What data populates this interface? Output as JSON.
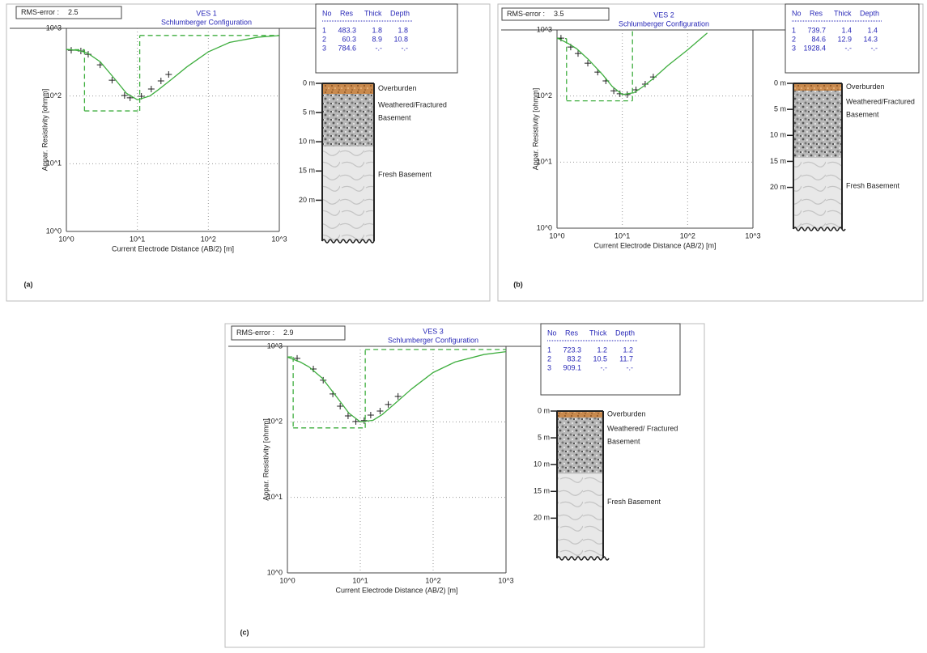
{
  "chart_data": [
    {
      "type": "line",
      "panel_label": "(a)",
      "rms_label": "RMS-error :",
      "rms": 2.5,
      "title": "VES 1",
      "subtitle": "Schlumberger Configuration",
      "xlabel": "Current Electrode Distance (AB/2) [m]",
      "ylabel": "Appar. Resistivity [ohmm]",
      "xscale": "log",
      "yscale": "log",
      "grid": true,
      "xlim": [
        1,
        1000
      ],
      "ylim": [
        1,
        1000
      ],
      "xticks": [
        {
          "value": 1,
          "label": "10^0"
        },
        {
          "value": 10,
          "label": "10^1"
        },
        {
          "value": 100,
          "label": "10^2"
        },
        {
          "value": 1000,
          "label": "10^3"
        }
      ],
      "yticks": [
        {
          "value": 1,
          "label": "10^0"
        },
        {
          "value": 10,
          "label": "10^1"
        },
        {
          "value": 100,
          "label": "10^2"
        },
        {
          "value": 1000,
          "label": "10^3"
        }
      ],
      "series": [
        {
          "style": "markers",
          "color": "#222222",
          "x": [
            1.17,
            1.6,
            2.03,
            2.99,
            4.4,
            6.6,
            7.9,
            11.4,
            15.7,
            21.5,
            27.6
          ],
          "values": [
            474,
            462,
            413,
            289,
            171,
            102,
            94,
            99,
            127,
            167,
            208
          ]
        },
        {
          "style": "line",
          "color": "#3fae3f",
          "x": [
            1,
            1.5,
            2,
            3,
            5,
            7,
            10,
            15,
            20,
            30,
            50,
            100,
            200,
            500,
            1000
          ],
          "values": [
            490,
            470,
            430,
            320,
            170,
            110,
            88,
            100,
            125,
            175,
            270,
            450,
            620,
            740,
            780
          ]
        }
      ],
      "model_color": "#3fae3f",
      "table": {
        "header": [
          "No",
          "Res",
          "Thick",
          "Depth"
        ],
        "rows": [
          [
            1,
            483.3,
            1.8,
            1.8
          ],
          [
            2,
            60.3,
            8.9,
            10.8
          ],
          [
            3,
            784.6,
            "-.-",
            "-.-"
          ]
        ]
      },
      "litho": {
        "depth_lim": [
          0,
          27
        ],
        "depth_ticks": [
          {
            "value": 0,
            "label": "0 m"
          },
          {
            "value": 5,
            "label": "5 m"
          },
          {
            "value": 10,
            "label": "10 m"
          },
          {
            "value": 15,
            "label": "15 m"
          },
          {
            "value": 20,
            "label": "20 m"
          }
        ],
        "layers": [
          {
            "label": [
              "Overburden"
            ]
          },
          {
            "label": [
              "Weathered/Fractured",
              "Basement"
            ]
          },
          {
            "label": [
              "Fresh Basement"
            ]
          }
        ]
      }
    },
    {
      "type": "line",
      "panel_label": "(b)",
      "rms_label": "RMS-error :",
      "rms": 3.5,
      "title": "VES 2",
      "subtitle": "Schlumberger Configuration",
      "xlabel": "Current Electrode Distance (AB/2) [m]",
      "ylabel": "Appar. Resistivity [ohmm]",
      "xscale": "log",
      "yscale": "log",
      "grid": true,
      "xlim": [
        1,
        1000
      ],
      "ylim": [
        1,
        1000
      ],
      "xticks": [
        {
          "value": 1,
          "label": "10^0"
        },
        {
          "value": 10,
          "label": "10^1"
        },
        {
          "value": 100,
          "label": "10^2"
        },
        {
          "value": 1000,
          "label": "10^3"
        }
      ],
      "yticks": [
        {
          "value": 1,
          "label": "10^0"
        },
        {
          "value": 10,
          "label": "10^1"
        },
        {
          "value": 100,
          "label": "10^2"
        },
        {
          "value": 1000,
          "label": "10^3"
        }
      ],
      "series": [
        {
          "style": "markers",
          "color": "#222222",
          "x": [
            1.15,
            1.62,
            2.1,
            2.96,
            4.2,
            5.6,
            7.4,
            9.2,
            11.9,
            16.2,
            22.4,
            29.8
          ],
          "values": [
            752,
            552,
            440,
            314,
            230,
            169,
            120,
            108,
            105,
            124,
            151,
            194
          ]
        },
        {
          "style": "line",
          "color": "#3fae3f",
          "x": [
            1,
            1.5,
            2,
            3,
            5,
            7,
            10,
            15,
            20,
            30,
            50,
            100,
            200
          ],
          "values": [
            760,
            620,
            520,
            360,
            210,
            140,
            105,
            112,
            135,
            185,
            290,
            500,
            900
          ]
        }
      ],
      "model_color": "#3fae3f",
      "table": {
        "header": [
          "No",
          "Res",
          "Thick",
          "Depth"
        ],
        "rows": [
          [
            1,
            739.7,
            1.4,
            1.4
          ],
          [
            2,
            84.6,
            12.9,
            14.3
          ],
          [
            3,
            1928.4,
            "-.-",
            "-.-"
          ]
        ]
      },
      "litho": {
        "depth_lim": [
          0,
          28
        ],
        "depth_ticks": [
          {
            "value": 0,
            "label": "0 m"
          },
          {
            "value": 5,
            "label": "5 m"
          },
          {
            "value": 10,
            "label": "10 m"
          },
          {
            "value": 15,
            "label": "15 m"
          },
          {
            "value": 20,
            "label": "20 m"
          }
        ],
        "layers": [
          {
            "label": [
              "Overburden"
            ]
          },
          {
            "label": [
              "Weathered/Fractured",
              "Basement"
            ]
          },
          {
            "label": [
              "Fresh Basement"
            ]
          }
        ]
      }
    },
    {
      "type": "line",
      "panel_label": "(c)",
      "rms_label": "RMS-error :",
      "rms": 2.9,
      "title": "VES 3",
      "subtitle": "Schlumberger Configuration",
      "xlabel": "Current Electrode Distance (AB/2) [m]",
      "ylabel": "Appar. Resistivity [ohmm]",
      "xscale": "log",
      "yscale": "log",
      "grid": true,
      "xlim": [
        1,
        1000
      ],
      "ylim": [
        1,
        1000
      ],
      "xticks": [
        {
          "value": 1,
          "label": "10^0"
        },
        {
          "value": 10,
          "label": "10^1"
        },
        {
          "value": 100,
          "label": "10^2"
        },
        {
          "value": 1000,
          "label": "10^3"
        }
      ],
      "yticks": [
        {
          "value": 1,
          "label": "10^0"
        },
        {
          "value": 10,
          "label": "10^1"
        },
        {
          "value": 100,
          "label": "10^2"
        },
        {
          "value": 1000,
          "label": "10^3"
        }
      ],
      "series": [
        {
          "style": "markers",
          "color": "#222222",
          "x": [
            1.36,
            2.27,
            3.1,
            4.2,
            5.3,
            6.8,
            8.7,
            11.3,
            13.9,
            18.7,
            24.2,
            33
          ],
          "values": [
            692,
            501,
            356,
            234,
            161,
            120,
            101,
            104,
            123,
            139,
            170,
            217
          ]
        },
        {
          "style": "line",
          "color": "#3fae3f",
          "x": [
            1,
            1.5,
            2,
            3,
            5,
            7,
            10,
            15,
            20,
            30,
            50,
            100,
            200,
            500,
            1000
          ],
          "values": [
            720,
            620,
            530,
            380,
            200,
            130,
            100,
            105,
            125,
            175,
            270,
            450,
            620,
            780,
            850
          ]
        }
      ],
      "model_color": "#3fae3f",
      "table": {
        "header": [
          "No",
          "Res",
          "Thick",
          "Depth"
        ],
        "rows": [
          [
            1,
            723.3,
            1.2,
            1.2
          ],
          [
            2,
            83.2,
            10.5,
            11.7
          ],
          [
            3,
            909.1,
            "-.-",
            "-.-"
          ]
        ]
      },
      "litho": {
        "depth_lim": [
          0,
          27.5
        ],
        "depth_ticks": [
          {
            "value": 0,
            "label": "0 m"
          },
          {
            "value": 5,
            "label": "5 m"
          },
          {
            "value": 10,
            "label": "10 m"
          },
          {
            "value": 15,
            "label": "15 m"
          },
          {
            "value": 20,
            "label": "20 m"
          }
        ],
        "layers": [
          {
            "label": [
              "Overburden"
            ]
          },
          {
            "label": [
              "Weathered/ Fractured",
              "Basement"
            ]
          },
          {
            "label": [
              "Fresh Basement"
            ]
          }
        ]
      }
    }
  ]
}
